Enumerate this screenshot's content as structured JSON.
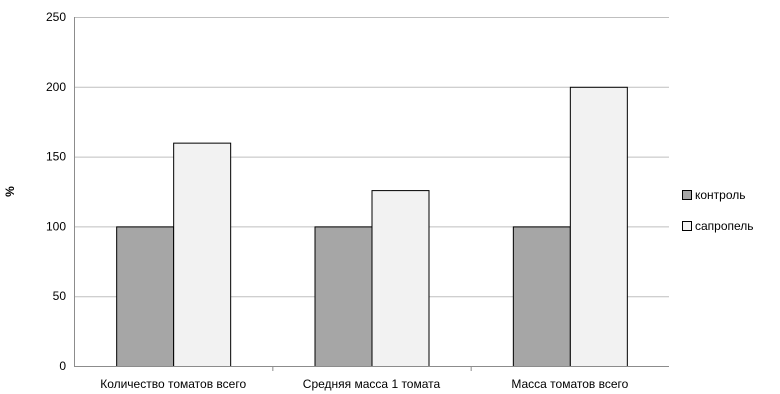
{
  "chart_data": {
    "type": "bar",
    "title": "",
    "xlabel": "",
    "ylabel": "%",
    "ylim": [
      0,
      250
    ],
    "yticks": [
      0,
      50,
      100,
      150,
      200,
      250
    ],
    "grid": true,
    "legend_position": "right",
    "categories": [
      "Количество томатов всего",
      "Средняя масса 1 томата",
      "Масса томатов всего"
    ],
    "series": [
      {
        "name": "контроль",
        "values": [
          100,
          100,
          100
        ],
        "color": "#a6a6a6"
      },
      {
        "name": "сапропель",
        "values": [
          160,
          126,
          200
        ],
        "color": "#f2f2f2"
      }
    ]
  }
}
